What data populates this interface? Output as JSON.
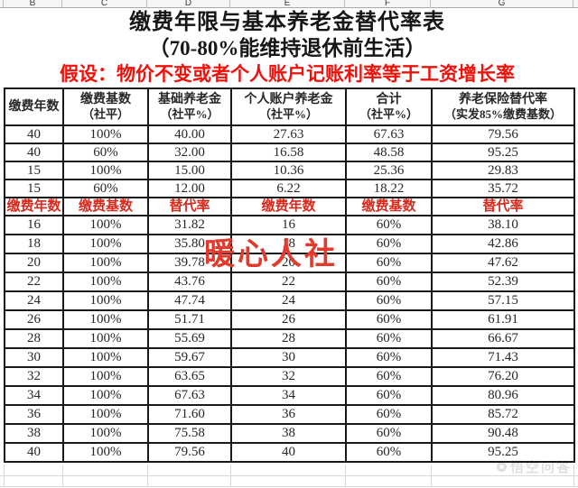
{
  "sheet": {
    "column_letters": [
      "B",
      "C",
      "D",
      "E",
      "F",
      "G"
    ],
    "title_line1": "缴费年限与基本养老金替代率表",
    "title_line2": "（70-80%能维持退休前生活）",
    "assumption": "假设：物价不变或者个人账户记账利率等于工资增长率"
  },
  "colors": {
    "assumption_red": "#f2100a",
    "subheader_red": "#d8291d",
    "watermark_red": "#e23a2c",
    "border_black": "#191919",
    "grid_gray": "#d7d7d7",
    "text_dark": "#272727"
  },
  "table": {
    "header": [
      {
        "line1": "缴费年数",
        "line2": ""
      },
      {
        "line1": "缴费基数",
        "line2": "（社平）"
      },
      {
        "line1": "基础养老金",
        "line2": "（社平%）"
      },
      {
        "line1": "个人账户养老金",
        "line2": "（社平%）"
      },
      {
        "line1": "合计",
        "line2": "（社平%）"
      },
      {
        "line1": "养老保险替代率",
        "line2": "（实发85%缴费基数）"
      }
    ],
    "top_rows": [
      [
        "40",
        "100%",
        "40.00",
        "27.63",
        "67.63",
        "79.56"
      ],
      [
        "40",
        "60%",
        "32.00",
        "16.58",
        "48.58",
        "95.25"
      ],
      [
        "15",
        "100%",
        "15.00",
        "10.36",
        "25.36",
        "29.83"
      ],
      [
        "15",
        "60%",
        "12.00",
        "6.22",
        "18.22",
        "35.72"
      ]
    ],
    "sub_header": [
      "缴费年数",
      "缴费基数",
      "替代率",
      "缴费年数",
      "缴费基数",
      "替代率"
    ],
    "bottom_rows": [
      [
        "16",
        "100%",
        "31.82",
        "16",
        "60%",
        "38.10"
      ],
      [
        "18",
        "100%",
        "35.80",
        "18",
        "60%",
        "42.86"
      ],
      [
        "20",
        "100%",
        "39.78",
        "20",
        "60%",
        "47.62"
      ],
      [
        "22",
        "100%",
        "43.76",
        "22",
        "60%",
        "52.39"
      ],
      [
        "24",
        "100%",
        "47.74",
        "24",
        "60%",
        "57.15"
      ],
      [
        "26",
        "100%",
        "51.71",
        "26",
        "60%",
        "61.91"
      ],
      [
        "28",
        "100%",
        "55.69",
        "28",
        "60%",
        "66.67"
      ],
      [
        "30",
        "100%",
        "59.67",
        "30",
        "60%",
        "71.43"
      ],
      [
        "32",
        "100%",
        "63.65",
        "32",
        "60%",
        "76.20"
      ],
      [
        "34",
        "100%",
        "67.63",
        "34",
        "60%",
        "80.96"
      ],
      [
        "36",
        "100%",
        "71.60",
        "36",
        "60%",
        "85.72"
      ],
      [
        "38",
        "100%",
        "75.58",
        "38",
        "60%",
        "90.48"
      ],
      [
        "40",
        "100%",
        "79.56",
        "40",
        "60%",
        "95.25"
      ]
    ]
  },
  "watermarks": {
    "center_red": "暖心人社",
    "corner_gray": "悟空问答"
  },
  "icons": {
    "watermark_logo": "circle-outline"
  }
}
